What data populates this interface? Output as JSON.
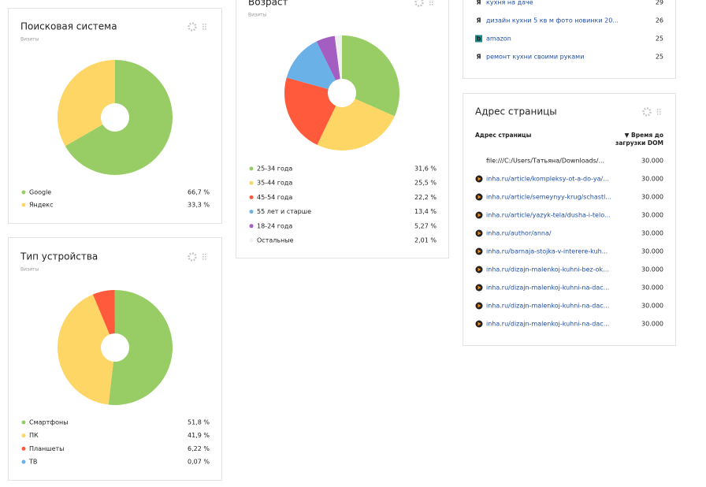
{
  "chart_data": [
    {
      "type": "pie",
      "title": "Поисковая система",
      "subtitle": "Визиты",
      "categories": [
        "Google",
        "Яндекс"
      ],
      "values": [
        66.7,
        33.3
      ],
      "value_labels": [
        "66,7 %",
        "33,3 %"
      ],
      "colors": [
        "#97cd64",
        "#fdd666"
      ]
    },
    {
      "type": "pie",
      "title": "Тип устройства",
      "subtitle": "Визиты",
      "categories": [
        "Смартфоны",
        "ПК",
        "Планшеты",
        "ТВ"
      ],
      "values": [
        51.8,
        41.9,
        6.22,
        0.07
      ],
      "value_labels": [
        "51,8 %",
        "41,9 %",
        "6,22 %",
        "0,07 %"
      ],
      "colors": [
        "#97cd64",
        "#fdd666",
        "#ff5a3c",
        "#6ab1e8"
      ]
    },
    {
      "type": "pie",
      "title": "Возраст",
      "subtitle": "Визиты",
      "categories": [
        "25-34 года",
        "35-44 года",
        "45-54 года",
        "55 лет и старше",
        "18-24 года",
        "Остальные"
      ],
      "values": [
        31.6,
        25.5,
        22.2,
        13.4,
        5.27,
        2.01
      ],
      "value_labels": [
        "31,6 %",
        "25,5 %",
        "22,2 %",
        "13,4 %",
        "5,27 %",
        "2,01 %"
      ],
      "colors": [
        "#97cd64",
        "#fdd666",
        "#ff5a3c",
        "#6ab1e8",
        "#a45ec2",
        "#f0f0f0"
      ]
    }
  ],
  "search_phrases": {
    "rows": [
      {
        "icon": "Я",
        "text": "кухня на даче",
        "value": 29
      },
      {
        "icon": "Я",
        "text": "дизайн кухни 5 кв м фото новинки 20...",
        "value": 26
      },
      {
        "icon": "b",
        "text": "amazon",
        "value": 25
      },
      {
        "icon": "Я",
        "text": "ремонт кухни своими руками",
        "value": 25
      }
    ]
  },
  "page_address": {
    "title": "Адрес страницы",
    "column": "Адрес страницы",
    "time_header": [
      "▼ Время до",
      "загрузки DOM"
    ],
    "rows": [
      {
        "url": "file:///C:/Users/Татьяна/Downloads/...",
        "value": "30.000"
      },
      {
        "url": "inha.ru/article/kompleksy-ot-a-do-ya/...",
        "value": "30.000"
      },
      {
        "url": "inha.ru/article/semeynyy-krug/schastl...",
        "value": "30.000"
      },
      {
        "url": "inha.ru/article/yazyk-tela/dusha-i-telo...",
        "value": "30.000"
      },
      {
        "url": "inha.ru/author/anna/",
        "value": "30.000"
      },
      {
        "url": "inha.ru/barnaja-stojka-v-interere-kuh...",
        "value": "30.000"
      },
      {
        "url": "inha.ru/dizajn-malenkoj-kuhni-bez-ok...",
        "value": "30.000"
      },
      {
        "url": "inha.ru/dizajn-malenkoj-kuhni-na-dac...",
        "value": "30.000"
      },
      {
        "url": "inha.ru/dizajn-malenkoj-kuhni-na-dac...",
        "value": "30.000"
      },
      {
        "url": "inha.ru/dizajn-malenkoj-kuhni-na-dac...",
        "value": "30.000"
      }
    ]
  }
}
